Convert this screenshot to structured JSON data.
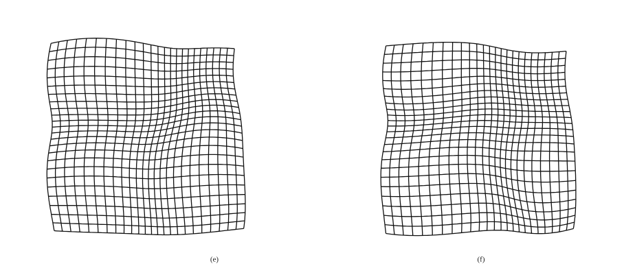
{
  "figure": {
    "panels": [
      {
        "label": "(e)"
      },
      {
        "label": "(f)"
      }
    ]
  }
}
